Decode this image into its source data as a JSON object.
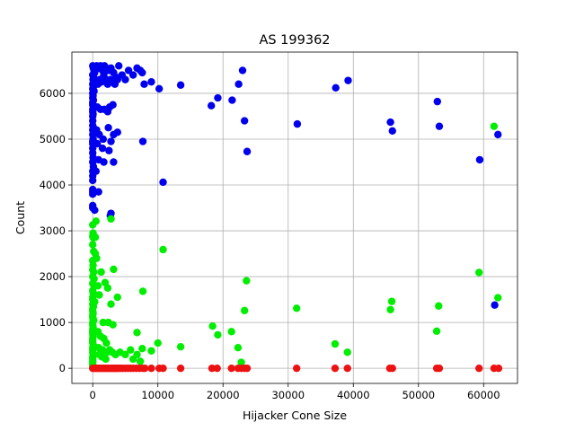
{
  "chart_data": {
    "type": "scatter",
    "title": "AS 199362",
    "xlabel": "Hijacker Cone Size",
    "ylabel": "Count",
    "xlim": [
      -3200,
      65200
    ],
    "ylim": [
      -330,
      6900
    ],
    "x_ticks": [
      0,
      10000,
      20000,
      30000,
      40000,
      50000,
      60000
    ],
    "x_tick_labels": [
      "0",
      "10000",
      "20000",
      "30000",
      "40000",
      "50000",
      "60000"
    ],
    "y_ticks": [
      0,
      1000,
      2000,
      3000,
      4000,
      5000,
      6000
    ],
    "y_tick_labels": [
      "0",
      "1000",
      "2000",
      "3000",
      "4000",
      "5000",
      "6000"
    ],
    "grid": true,
    "series": [
      {
        "color": "#0000ee",
        "points": [
          [
            0,
            6600
          ],
          [
            100,
            6550
          ],
          [
            200,
            6500
          ],
          [
            300,
            6450
          ],
          [
            0,
            6400
          ],
          [
            150,
            6350
          ],
          [
            50,
            6300
          ],
          [
            250,
            6250
          ],
          [
            0,
            6200
          ],
          [
            100,
            6150
          ],
          [
            0,
            6100
          ],
          [
            200,
            6050
          ],
          [
            0,
            6000
          ],
          [
            50,
            5950
          ],
          [
            0,
            5900
          ],
          [
            100,
            5850
          ],
          [
            0,
            5800
          ],
          [
            0,
            5750
          ],
          [
            150,
            5700
          ],
          [
            0,
            5650
          ],
          [
            0,
            5600
          ],
          [
            50,
            5550
          ],
          [
            0,
            5500
          ],
          [
            0,
            5400
          ],
          [
            0,
            5300
          ],
          [
            100,
            5250
          ],
          [
            0,
            5200
          ],
          [
            0,
            5100
          ],
          [
            50,
            5000
          ],
          [
            0,
            4950
          ],
          [
            0,
            4900
          ],
          [
            0,
            4800
          ],
          [
            0,
            4700
          ],
          [
            50,
            4600
          ],
          [
            0,
            4500
          ],
          [
            100,
            4400
          ],
          [
            0,
            4300
          ],
          [
            0,
            4200
          ],
          [
            0,
            4100
          ],
          [
            0,
            3900
          ],
          [
            0,
            3850
          ],
          [
            0,
            3800
          ],
          [
            0,
            3550
          ],
          [
            0,
            3500
          ],
          [
            300,
            3450
          ],
          [
            600,
            6600
          ],
          [
            900,
            6550
          ],
          [
            1200,
            6600
          ],
          [
            1500,
            6500
          ],
          [
            1800,
            6600
          ],
          [
            2100,
            6550
          ],
          [
            2500,
            6500
          ],
          [
            2800,
            6550
          ],
          [
            3200,
            6450
          ],
          [
            3600,
            6350
          ],
          [
            4000,
            6600
          ],
          [
            4500,
            6400
          ],
          [
            5000,
            6300
          ],
          [
            5500,
            6500
          ],
          [
            6200,
            6400
          ],
          [
            6800,
            6550
          ],
          [
            7300,
            6500
          ],
          [
            7600,
            6450
          ],
          [
            7900,
            6200
          ],
          [
            9000,
            6250
          ],
          [
            10200,
            6100
          ],
          [
            500,
            6250
          ],
          [
            800,
            6200
          ],
          [
            1100,
            6300
          ],
          [
            1400,
            6250
          ],
          [
            1700,
            6400
          ],
          [
            2000,
            6300
          ],
          [
            2300,
            6200
          ],
          [
            2700,
            6300
          ],
          [
            3000,
            6250
          ],
          [
            3400,
            6200
          ],
          [
            3800,
            6300
          ],
          [
            700,
            5700
          ],
          [
            1200,
            5650
          ],
          [
            1800,
            5650
          ],
          [
            2300,
            5600
          ],
          [
            2600,
            5700
          ],
          [
            3100,
            5750
          ],
          [
            600,
            5200
          ],
          [
            1000,
            5100
          ],
          [
            1600,
            5000
          ],
          [
            2400,
            5250
          ],
          [
            2800,
            4950
          ],
          [
            3200,
            5100
          ],
          [
            3800,
            5150
          ],
          [
            700,
            4900
          ],
          [
            1500,
            4800
          ],
          [
            2500,
            4750
          ],
          [
            900,
            4550
          ],
          [
            1700,
            4500
          ],
          [
            3200,
            4500
          ],
          [
            500,
            4300
          ],
          [
            900,
            3850
          ],
          [
            2800,
            3380
          ],
          [
            2700,
            3330
          ],
          [
            7700,
            4950
          ],
          [
            10800,
            4060
          ],
          [
            13500,
            6180
          ],
          [
            18200,
            5730
          ],
          [
            19200,
            5900
          ],
          [
            21400,
            5850
          ],
          [
            22400,
            6200
          ],
          [
            23000,
            6500
          ],
          [
            23300,
            5400
          ],
          [
            23700,
            4730
          ],
          [
            31400,
            5330
          ],
          [
            37300,
            6120
          ],
          [
            39200,
            6280
          ],
          [
            45700,
            5370
          ],
          [
            46000,
            5180
          ],
          [
            52900,
            5820
          ],
          [
            53200,
            5280
          ],
          [
            59400,
            4550
          ],
          [
            61700,
            1380
          ],
          [
            62200,
            5100
          ]
        ]
      },
      {
        "color": "#00ee00",
        "points": [
          [
            0,
            3130
          ],
          [
            50,
            2950
          ],
          [
            0,
            2880
          ],
          [
            100,
            2850
          ],
          [
            400,
            2860
          ],
          [
            0,
            2700
          ],
          [
            150,
            2550
          ],
          [
            400,
            2500
          ],
          [
            600,
            2400
          ],
          [
            0,
            2350
          ],
          [
            50,
            2250
          ],
          [
            0,
            2150
          ],
          [
            150,
            2100
          ],
          [
            0,
            2000
          ],
          [
            200,
            1950
          ],
          [
            0,
            1850
          ],
          [
            250,
            1800
          ],
          [
            0,
            1700
          ],
          [
            50,
            1650
          ],
          [
            0,
            1550
          ],
          [
            0,
            1500
          ],
          [
            300,
            1450
          ],
          [
            0,
            1400
          ],
          [
            100,
            1350
          ],
          [
            0,
            1300
          ],
          [
            0,
            1250
          ],
          [
            50,
            1200
          ],
          [
            0,
            1150
          ],
          [
            0,
            1100
          ],
          [
            150,
            1050
          ],
          [
            0,
            1000
          ],
          [
            0,
            950
          ],
          [
            50,
            900
          ],
          [
            0,
            850
          ],
          [
            0,
            800
          ],
          [
            0,
            750
          ],
          [
            50,
            700
          ],
          [
            0,
            650
          ],
          [
            0,
            600
          ],
          [
            0,
            550
          ],
          [
            100,
            500
          ],
          [
            0,
            450
          ],
          [
            0,
            400
          ],
          [
            0,
            350
          ],
          [
            50,
            300
          ],
          [
            0,
            250
          ],
          [
            0,
            200
          ],
          [
            0,
            150
          ],
          [
            0,
            100
          ],
          [
            0,
            60
          ],
          [
            0,
            30
          ],
          [
            0,
            10
          ],
          [
            500,
            3210
          ],
          [
            800,
            1800
          ],
          [
            1000,
            1600
          ],
          [
            1300,
            2100
          ],
          [
            1900,
            1870
          ],
          [
            2300,
            1750
          ],
          [
            3200,
            2160
          ],
          [
            2800,
            1400
          ],
          [
            3800,
            1550
          ],
          [
            1600,
            1000
          ],
          [
            2400,
            1000
          ],
          [
            3100,
            950
          ],
          [
            800,
            800
          ],
          [
            1200,
            700
          ],
          [
            1700,
            650
          ],
          [
            2100,
            550
          ],
          [
            2600,
            400
          ],
          [
            3000,
            350
          ],
          [
            3500,
            300
          ],
          [
            4200,
            350
          ],
          [
            5000,
            300
          ],
          [
            5800,
            400
          ],
          [
            6200,
            200
          ],
          [
            6800,
            300
          ],
          [
            7300,
            150
          ],
          [
            2800,
            3260
          ],
          [
            7700,
            1680
          ],
          [
            10000,
            550
          ],
          [
            10800,
            2590
          ],
          [
            6800,
            780
          ],
          [
            7600,
            430
          ],
          [
            9000,
            380
          ],
          [
            1000,
            300
          ],
          [
            1400,
            250
          ],
          [
            2000,
            200
          ],
          [
            1500,
            400
          ],
          [
            900,
            450
          ],
          [
            2200,
            350
          ],
          [
            13500,
            470
          ],
          [
            18400,
            920
          ],
          [
            19200,
            730
          ],
          [
            21300,
            800
          ],
          [
            22300,
            450
          ],
          [
            22800,
            130
          ],
          [
            23300,
            1260
          ],
          [
            23600,
            1910
          ],
          [
            31300,
            1310
          ],
          [
            37200,
            530
          ],
          [
            39100,
            350
          ],
          [
            45700,
            1280
          ],
          [
            45900,
            1460
          ],
          [
            52800,
            810
          ],
          [
            53100,
            1360
          ],
          [
            59300,
            2090
          ],
          [
            61600,
            5280
          ],
          [
            62200,
            1540
          ]
        ]
      },
      {
        "color": "#ee1111",
        "points": [
          [
            0,
            0
          ],
          [
            200,
            0
          ],
          [
            400,
            0
          ],
          [
            600,
            0
          ],
          [
            800,
            0
          ],
          [
            1000,
            0
          ],
          [
            1200,
            0
          ],
          [
            1400,
            0
          ],
          [
            1600,
            0
          ],
          [
            1800,
            0
          ],
          [
            2000,
            0
          ],
          [
            2200,
            0
          ],
          [
            2400,
            0
          ],
          [
            2600,
            0
          ],
          [
            2800,
            0
          ],
          [
            3000,
            0
          ],
          [
            3200,
            0
          ],
          [
            3400,
            0
          ],
          [
            3600,
            0
          ],
          [
            3800,
            0
          ],
          [
            4000,
            0
          ],
          [
            4300,
            0
          ],
          [
            4600,
            0
          ],
          [
            5000,
            0
          ],
          [
            5400,
            0
          ],
          [
            5800,
            0
          ],
          [
            6200,
            0
          ],
          [
            6700,
            0
          ],
          [
            7200,
            0
          ],
          [
            7700,
            0
          ],
          [
            8000,
            0
          ],
          [
            9000,
            0
          ],
          [
            10200,
            0
          ],
          [
            10800,
            0
          ],
          [
            13500,
            0
          ],
          [
            18300,
            0
          ],
          [
            19100,
            0
          ],
          [
            21300,
            0
          ],
          [
            22300,
            0
          ],
          [
            22800,
            0
          ],
          [
            23300,
            0
          ],
          [
            23700,
            0
          ],
          [
            31300,
            0
          ],
          [
            37200,
            0
          ],
          [
            39100,
            0
          ],
          [
            45600,
            0
          ],
          [
            46000,
            0
          ],
          [
            52800,
            0
          ],
          [
            53200,
            0
          ],
          [
            59300,
            0
          ],
          [
            61600,
            0
          ],
          [
            62300,
            0
          ]
        ]
      }
    ]
  }
}
